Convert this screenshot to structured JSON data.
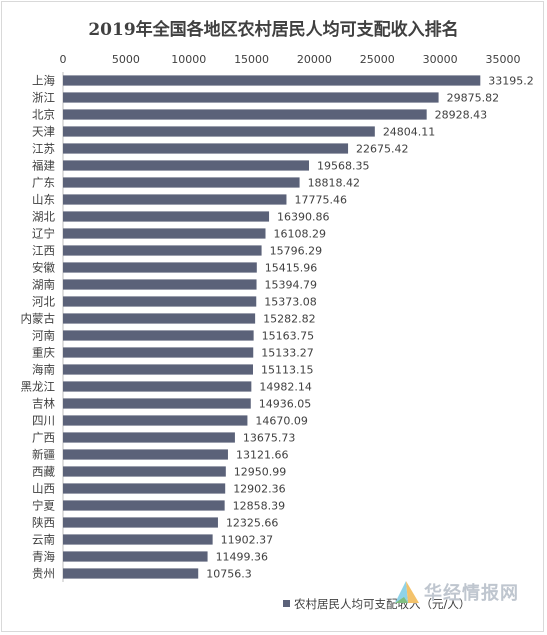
{
  "chart_data": {
    "type": "bar",
    "orientation": "horizontal",
    "title": "2019年全国各地区农村居民人均可支配收入排名",
    "categories": [
      "上海",
      "浙江",
      "北京",
      "天津",
      "江苏",
      "福建",
      "广东",
      "山东",
      "湖北",
      "辽宁",
      "江西",
      "安徽",
      "湖南",
      "河北",
      "内蒙古",
      "河南",
      "重庆",
      "海南",
      "黑龙江",
      "吉林",
      "四川",
      "广西",
      "新疆",
      "西藏",
      "山西",
      "宁夏",
      "陕西",
      "云南",
      "青海",
      "贵州"
    ],
    "value_labels": [
      "33195.2",
      "29875.82",
      "28928.43",
      "24804.11",
      "22675.42",
      "19568.35",
      "18818.42",
      "17775.46",
      "16390.86",
      "16108.29",
      "15796.29",
      "15415.96",
      "15394.79",
      "15373.08",
      "15282.82",
      "15163.75",
      "15133.27",
      "15113.15",
      "14982.14",
      "14936.05",
      "14670.09",
      "13675.73",
      "13121.66",
      "12950.99",
      "12902.36",
      "12858.39",
      "12325.66",
      "11902.37",
      "11499.36",
      "10756.3"
    ],
    "series": [
      {
        "name": "农村居民人均可支配收入（元/人）",
        "color": "#5b6279",
        "values": [
          33195.2,
          29875.82,
          28928.43,
          24804.11,
          22675.42,
          19568.35,
          18818.42,
          17775.46,
          16390.86,
          16108.29,
          15796.29,
          15415.96,
          15394.79,
          15373.08,
          15282.82,
          15163.75,
          15133.27,
          15113.15,
          14982.14,
          14936.05,
          14670.09,
          13675.73,
          13121.66,
          12950.99,
          12902.36,
          12858.39,
          12325.66,
          11902.37,
          11499.36,
          10756.3
        ]
      }
    ],
    "x_ticks": [
      "0",
      "5000",
      "10000",
      "15000",
      "20000",
      "25000",
      "30000",
      "35000"
    ],
    "xlim": [
      0,
      35000
    ],
    "x_axis_position": "top",
    "grid": false,
    "legend_position": "bottom-right"
  },
  "watermark": {
    "text": "华经情报网"
  }
}
